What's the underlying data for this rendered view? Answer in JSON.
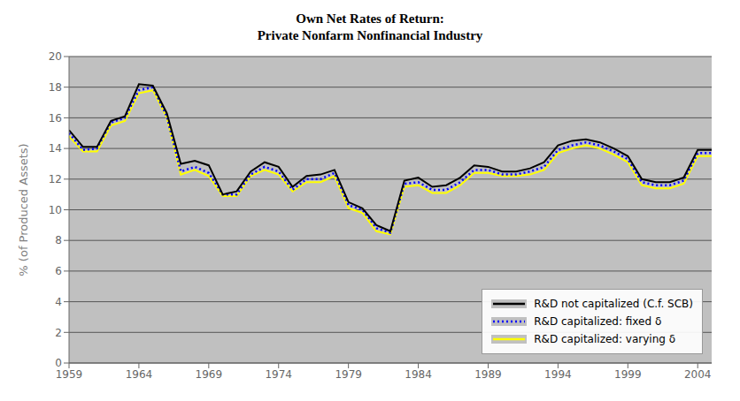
{
  "chart_data": {
    "type": "line",
    "title": "Own Net Rates of Return:\nPrivate Nonfarm Nonfinancial Industry",
    "y_label": "% (of Produced Assets)",
    "x": [
      1959,
      1960,
      1961,
      1962,
      1963,
      1964,
      1965,
      1966,
      1967,
      1968,
      1969,
      1970,
      1971,
      1972,
      1973,
      1974,
      1975,
      1976,
      1977,
      1978,
      1979,
      1980,
      1981,
      1982,
      1983,
      1984,
      1985,
      1986,
      1987,
      1988,
      1989,
      1990,
      1991,
      1992,
      1993,
      1994,
      1995,
      1996,
      1997,
      1998,
      1999,
      2000,
      2001,
      2002,
      2003,
      2004,
      2005
    ],
    "series": [
      {
        "name": "R&D not capitalized (C.f. SCB)",
        "color": "#000000",
        "line_style": "solid",
        "values": [
          15.2,
          14.1,
          14.1,
          15.8,
          16.1,
          18.2,
          18.1,
          16.3,
          13.0,
          13.2,
          12.9,
          11.0,
          11.2,
          12.5,
          13.1,
          12.8,
          11.5,
          12.2,
          12.3,
          12.6,
          10.5,
          10.1,
          9.0,
          8.6,
          11.9,
          12.1,
          11.5,
          11.6,
          12.1,
          12.9,
          12.8,
          12.5,
          12.5,
          12.7,
          13.1,
          14.2,
          14.5,
          14.6,
          14.4,
          14.0,
          13.5,
          12.0,
          11.8,
          11.8,
          12.1,
          13.9,
          13.9
        ]
      },
      {
        "name": "R&D capitalized: fixed δ",
        "color": "#0000FF",
        "line_style": "dotted",
        "values": [
          15.0,
          13.9,
          14.0,
          15.7,
          16.0,
          17.8,
          18.0,
          16.1,
          12.5,
          12.8,
          12.4,
          11.0,
          11.0,
          12.3,
          12.8,
          12.5,
          11.3,
          12.0,
          12.0,
          12.4,
          10.3,
          10.0,
          8.8,
          8.5,
          11.7,
          11.8,
          11.3,
          11.3,
          11.8,
          12.6,
          12.6,
          12.3,
          12.3,
          12.5,
          12.8,
          13.9,
          14.2,
          14.4,
          14.2,
          13.8,
          13.3,
          11.8,
          11.6,
          11.6,
          11.9,
          13.7,
          13.7
        ]
      },
      {
        "name": "R&D capitalized: varying δ",
        "color": "#FFFF00",
        "line_style": "solid",
        "values": [
          14.8,
          13.8,
          13.8,
          15.5,
          15.8,
          17.6,
          17.8,
          16.0,
          12.3,
          12.6,
          12.2,
          10.9,
          10.9,
          12.2,
          12.6,
          12.3,
          11.2,
          11.8,
          11.8,
          12.2,
          10.1,
          9.8,
          8.6,
          8.4,
          11.5,
          11.6,
          11.1,
          11.1,
          11.6,
          12.4,
          12.4,
          12.2,
          12.2,
          12.3,
          12.6,
          13.7,
          14.0,
          14.2,
          14.0,
          13.6,
          13.1,
          11.6,
          11.4,
          11.4,
          11.7,
          13.5,
          13.5
        ]
      }
    ],
    "xlim": [
      1959,
      2005
    ],
    "xticks": [
      1959,
      1964,
      1969,
      1974,
      1979,
      1984,
      1989,
      1994,
      1999,
      2004
    ],
    "ylim": [
      0,
      20
    ],
    "yticks": [
      0,
      2,
      4,
      6,
      8,
      10,
      12,
      14,
      16,
      18,
      20
    ],
    "grid": true,
    "legend": "lower right"
  }
}
